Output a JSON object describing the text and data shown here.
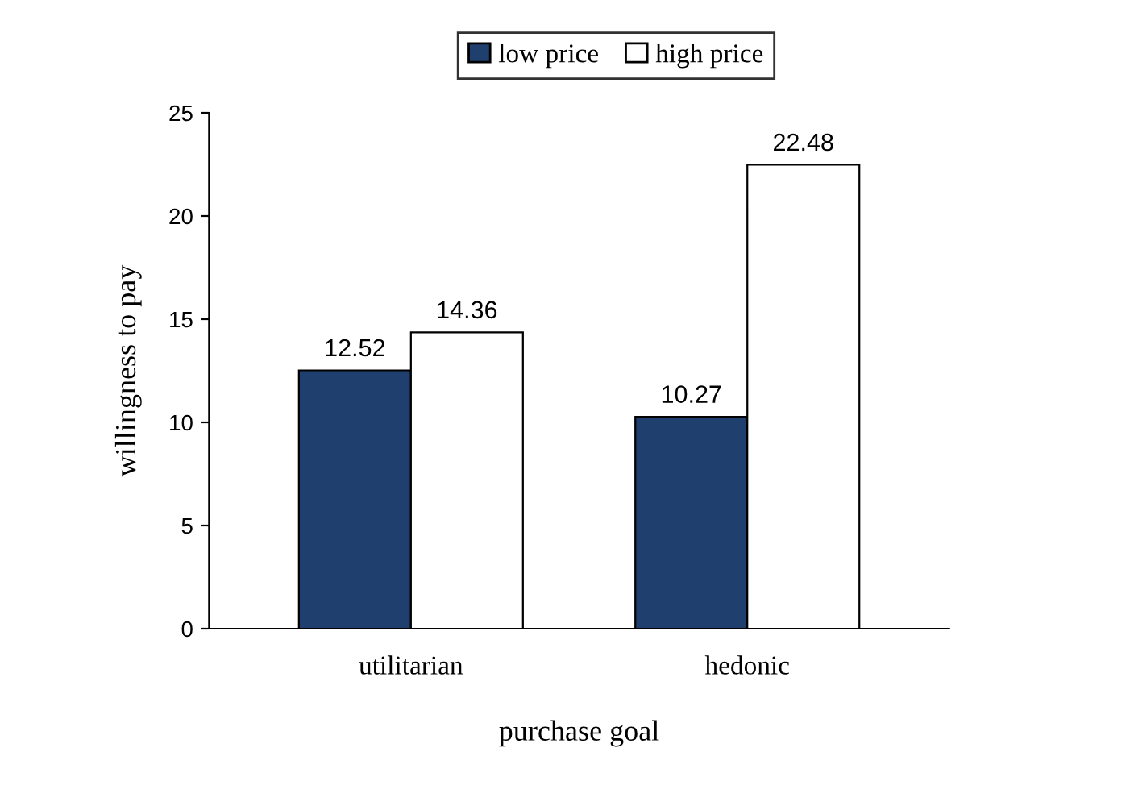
{
  "chart_data": {
    "type": "bar",
    "xlabel": "purchase goal",
    "ylabel": "willingness to pay",
    "categories": [
      "utilitarian",
      "hedonic"
    ],
    "series": [
      {
        "name": "low price",
        "color": "#1f3f6e",
        "values": [
          12.52,
          10.27
        ]
      },
      {
        "name": "high price",
        "color": "#ffffff",
        "values": [
          14.36,
          22.48
        ]
      }
    ],
    "ylim": [
      0,
      25
    ],
    "yticks": [
      0,
      5,
      10,
      15,
      20,
      25
    ],
    "grid": false,
    "legend": "top",
    "data_labels": true
  }
}
